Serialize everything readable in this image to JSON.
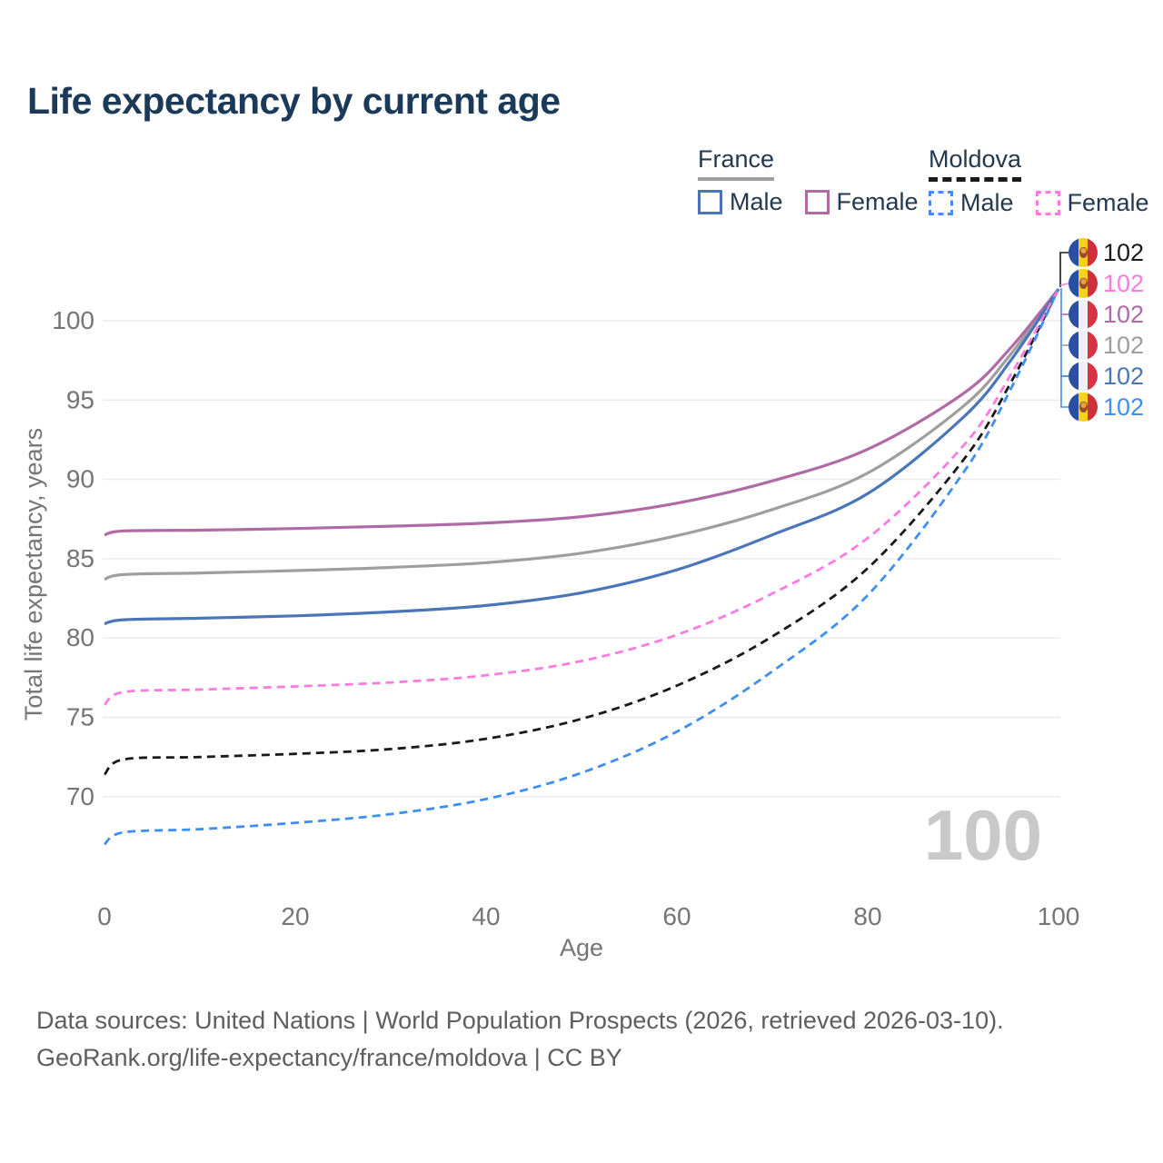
{
  "page": {
    "title": "Life expectancy by current age"
  },
  "legend": {
    "groups": [
      {
        "id": "france",
        "label": "France",
        "line_style": "solid",
        "line_color": "#9e9e9e",
        "items": [
          {
            "id": "france-male",
            "label": "Male",
            "color": "#4a76b8",
            "dashed": false
          },
          {
            "id": "france-female",
            "label": "Female",
            "color": "#b06aa5",
            "dashed": false
          }
        ]
      },
      {
        "id": "moldova",
        "label": "Moldova",
        "line_style": "dashed",
        "line_color": "#1a1a1a",
        "items": [
          {
            "id": "moldova-male",
            "label": "Male",
            "color": "#3f8ef2",
            "dashed": true
          },
          {
            "id": "moldova-female",
            "label": "Female",
            "color": "#fb7be0",
            "dashed": true
          }
        ]
      }
    ]
  },
  "watermark_current_age": "100",
  "footer": {
    "line1": "Data sources: United Nations | World Population Prospects (2026, retrieved 2026-03-10).",
    "line2": "GeoRank.org/life-expectancy/france/moldova | CC BY"
  },
  "colors": {
    "title": "#1b3a5a",
    "axis_text": "#757575",
    "grid": "#ebebeb",
    "watermark": "#c9c9c9"
  },
  "chart_data": {
    "type": "line",
    "title": "Life expectancy by current age",
    "xlabel": "Age",
    "ylabel": "Total life expectancy, years",
    "xlim": [
      0,
      100
    ],
    "ylim": [
      66,
      103
    ],
    "x_ticks": [
      0,
      20,
      40,
      60,
      80,
      100
    ],
    "y_ticks": [
      70,
      75,
      80,
      85,
      90,
      95,
      100
    ],
    "grid": "horizontal",
    "legend_position": "top-right",
    "x": [
      0,
      2,
      10,
      20,
      30,
      40,
      50,
      60,
      70,
      80,
      90,
      95,
      100
    ],
    "series": [
      {
        "id": "moldova-total",
        "name": "Moldova (both sexes)",
        "country": "moldova",
        "color": "#1a1a1a",
        "dashed": true,
        "end_label": "102",
        "values": [
          71.4,
          72.35,
          72.5,
          72.7,
          73.0,
          73.65,
          74.9,
          77.0,
          80.1,
          84.4,
          91.2,
          96.1,
          102
        ]
      },
      {
        "id": "moldova-female",
        "name": "Moldova Female",
        "country": "moldova",
        "color": "#fb7be0",
        "dashed": true,
        "end_label": "102",
        "values": [
          75.8,
          76.6,
          76.75,
          76.95,
          77.2,
          77.65,
          78.55,
          80.2,
          82.8,
          86.3,
          92.1,
          96.6,
          102
        ]
      },
      {
        "id": "france-female",
        "name": "France Female",
        "country": "france",
        "color": "#b06aa5",
        "dashed": false,
        "end_label": "102",
        "values": [
          86.5,
          86.75,
          86.8,
          86.9,
          87.05,
          87.25,
          87.65,
          88.5,
          89.9,
          91.9,
          95.4,
          98.3,
          102
        ]
      },
      {
        "id": "france-total",
        "name": "France (both sexes)",
        "country": "france",
        "color": "#9e9e9e",
        "dashed": false,
        "end_label": "102",
        "values": [
          83.7,
          84.0,
          84.1,
          84.25,
          84.45,
          84.75,
          85.35,
          86.45,
          88.1,
          90.4,
          94.6,
          97.9,
          102
        ]
      },
      {
        "id": "france-male",
        "name": "France Male",
        "country": "france",
        "color": "#4a76b8",
        "dashed": false,
        "end_label": "102",
        "values": [
          80.9,
          81.15,
          81.25,
          81.4,
          81.65,
          82.05,
          82.85,
          84.3,
          86.5,
          89.1,
          93.9,
          97.5,
          102
        ]
      },
      {
        "id": "moldova-male",
        "name": "Moldova Male",
        "country": "moldova",
        "color": "#3f8ef2",
        "dashed": true,
        "end_label": "102",
        "values": [
          67.0,
          67.75,
          67.95,
          68.35,
          68.9,
          69.85,
          71.5,
          74.1,
          77.9,
          82.7,
          90.4,
          95.7,
          102
        ]
      }
    ]
  }
}
